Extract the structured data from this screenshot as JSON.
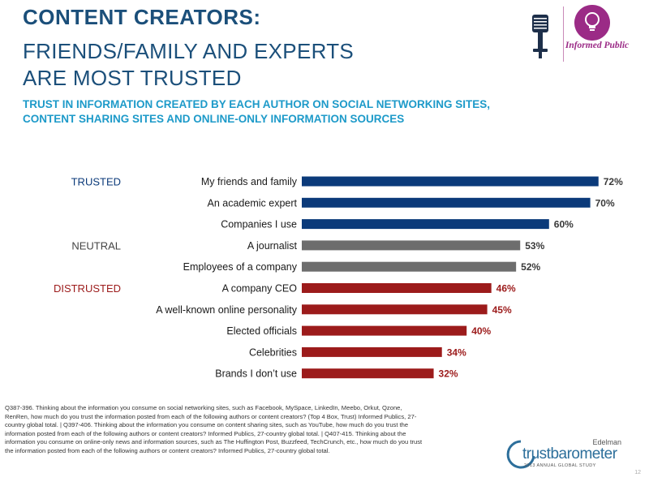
{
  "title": {
    "line1": "CONTENT CREATORS:",
    "line2": "FRIENDS/FAMILY AND EXPERTS",
    "line3": "ARE MOST TRUSTED"
  },
  "subtitle": "TRUST IN INFORMATION CREATED BY EACH AUTHOR ON SOCIAL NETWORKING SITES, CONTENT SHARING SITES AND ONLINE-ONLY INFORMATION SOURCES",
  "badge": {
    "label": "Informed Public",
    "icon": "lightbulb-icon",
    "decor_icon": "microphone-icon"
  },
  "colors": {
    "trusted": "#0b3a7a",
    "neutral": "#6d6d6d",
    "distrusted": "#9c1b1b",
    "group_trusted": "#0b3a7a",
    "group_neutral": "#444444",
    "group_distrusted": "#9c1b1b"
  },
  "chart_data": {
    "type": "bar",
    "orientation": "horizontal",
    "categories": [
      "My friends and family",
      "An academic expert",
      "Companies I use",
      "A journalist",
      "Employees of a company",
      "A company CEO",
      "A well-known online personality",
      "Elected officials",
      "Celebrities",
      "Brands I don’t use"
    ],
    "values": [
      72,
      70,
      60,
      53,
      52,
      46,
      45,
      40,
      34,
      32
    ],
    "value_labels": [
      "72%",
      "70%",
      "60%",
      "53%",
      "52%",
      "46%",
      "45%",
      "40%",
      "34%",
      "32%"
    ],
    "groups": [
      "trusted",
      "trusted",
      "trusted",
      "neutral",
      "neutral",
      "distrusted",
      "distrusted",
      "distrusted",
      "distrusted",
      "distrusted"
    ],
    "group_labels": [
      {
        "label": "TRUSTED",
        "group": "trusted",
        "row": 0
      },
      {
        "label": "NEUTRAL",
        "group": "neutral",
        "row": 3
      },
      {
        "label": "DISTRUSTED",
        "group": "distrusted",
        "row": 5
      }
    ],
    "unit": "%",
    "xlim": [
      0,
      100
    ],
    "grid": false,
    "legend": "none"
  },
  "footnote": "Q387-396. Thinking about the information you consume on social networking sites, such as Facebook, MySpace, LinkedIn, Meebo, Orkut, Qzone, RenRen, how much do you trust the information posted from each of the following authors or content creators? (Top 4 Box, Trust) Informed Publics, 27-country global total. | Q397-406. Thinking about the information you consume on content sharing sites, such as YouTube, how much do you trust the information posted from each of the following authors or content creators? Informed Publics, 27-country global total. | Q407-415. Thinking about the information you consume on online-only news and information sources, such as The Huffington Post, Buzzfeed, TechCrunch, etc., how much do you trust the information posted from each of the following authors or content creators? Informed Publics, 27-country global total.",
  "brand": {
    "company": "Edelman",
    "product": "trustbarometer",
    "tagline": "2013 ANNUAL GLOBAL STUDY"
  },
  "page_number": "12"
}
